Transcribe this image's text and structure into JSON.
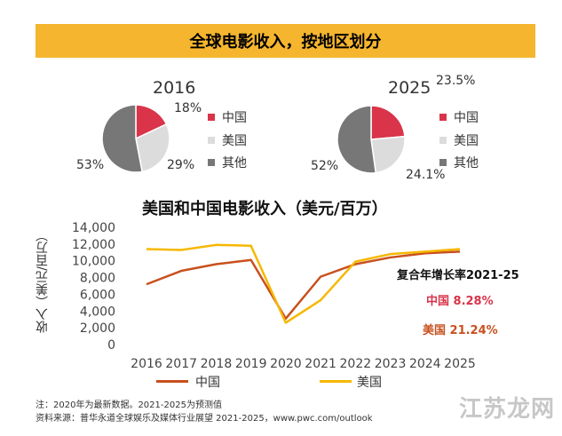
{
  "header": {
    "title": "全球电影收入，按地区划分"
  },
  "chart_data": [
    {
      "type": "pie",
      "title": "2016",
      "slices": [
        {
          "name": "中国",
          "value": 18,
          "label": "18%",
          "color": "#d9344a"
        },
        {
          "name": "美国",
          "value": 29,
          "label": "29%",
          "color": "#dcdcdc"
        },
        {
          "name": "其他",
          "value": 53,
          "label": "53%",
          "color": "#777777"
        }
      ]
    },
    {
      "type": "pie",
      "title": "2025",
      "slices": [
        {
          "name": "中国",
          "value": 23.5,
          "label": "23.5%",
          "color": "#d9344a"
        },
        {
          "name": "美国",
          "value": 24.1,
          "label": "24.1%",
          "color": "#dcdcdc"
        },
        {
          "name": "其他",
          "value": 52,
          "label": "52%",
          "color": "#777777"
        }
      ]
    },
    {
      "type": "line",
      "title": "美国和中国电影收入（美元/百万）",
      "ylabel": "收入（美元/百万）",
      "x": [
        "2016",
        "2017",
        "2018",
        "2019",
        "2020",
        "2021",
        "2022",
        "2023",
        "2024",
        "2025"
      ],
      "ylim": [
        0,
        14000
      ],
      "yticks": [
        "0",
        "2,000",
        "4,000",
        "6,000",
        "8,000",
        "10,000",
        "12,000",
        "14,000"
      ],
      "series": [
        {
          "name": "中国",
          "color": "#c8501e",
          "values": [
            7200,
            8800,
            9600,
            10100,
            3100,
            8100,
            9600,
            10400,
            10900,
            11100
          ]
        },
        {
          "name": "美国",
          "color": "#f5b800",
          "values": [
            11400,
            11300,
            11900,
            11800,
            2600,
            5300,
            9900,
            10800,
            11100,
            11400
          ]
        }
      ],
      "annotation": {
        "title": "复合年增长率2021-25",
        "china": "中国 8.28%",
        "usa": "美国 21.24%"
      }
    }
  ],
  "pie_legend": [
    {
      "label": "中国",
      "color": "#d9344a"
    },
    {
      "label": "美国",
      "color": "#dcdcdc"
    },
    {
      "label": "其他",
      "color": "#777777"
    }
  ],
  "footer": {
    "note": "注：2020年为最新数据。2021-2025为预测值",
    "source": "资料来源：普华永道全球娱乐及媒体行业展望 2021-2025，www.pwc.com/outlook"
  },
  "watermark": "江苏龙网"
}
